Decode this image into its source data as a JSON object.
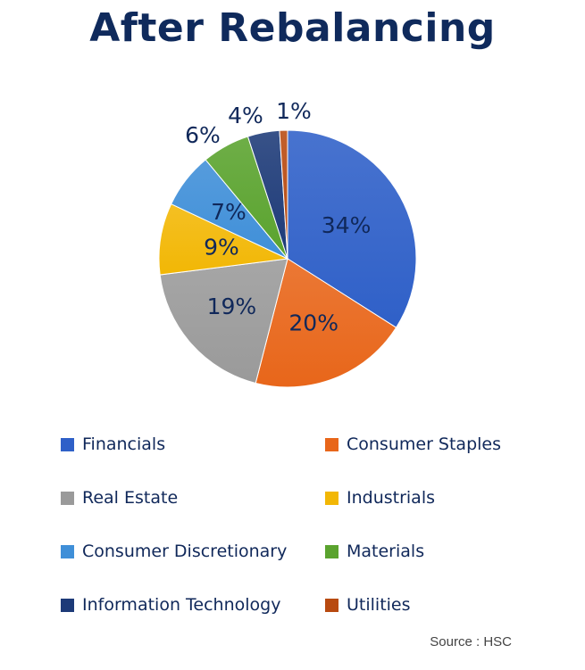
{
  "title": "After Rebalancing",
  "source": "Source : HSC",
  "chart_data": {
    "type": "pie",
    "title": "After Rebalancing",
    "categories": [
      "Financials",
      "Consumer Staples",
      "Real Estate",
      "Industrials",
      "Consumer Discretionary",
      "Materials",
      "Information Technology",
      "Utilities"
    ],
    "values": [
      34,
      20,
      19,
      9,
      7,
      6,
      4,
      1
    ],
    "labels": [
      "34%",
      "20%",
      "19%",
      "9%",
      "7%",
      "6%",
      "4%",
      "1%"
    ],
    "colors": [
      "#2f60c8",
      "#e8661a",
      "#9a9a9a",
      "#f2b705",
      "#3f8fd8",
      "#5aa32e",
      "#1d3a78",
      "#b84a10"
    ],
    "legend_placement": "bottom"
  }
}
